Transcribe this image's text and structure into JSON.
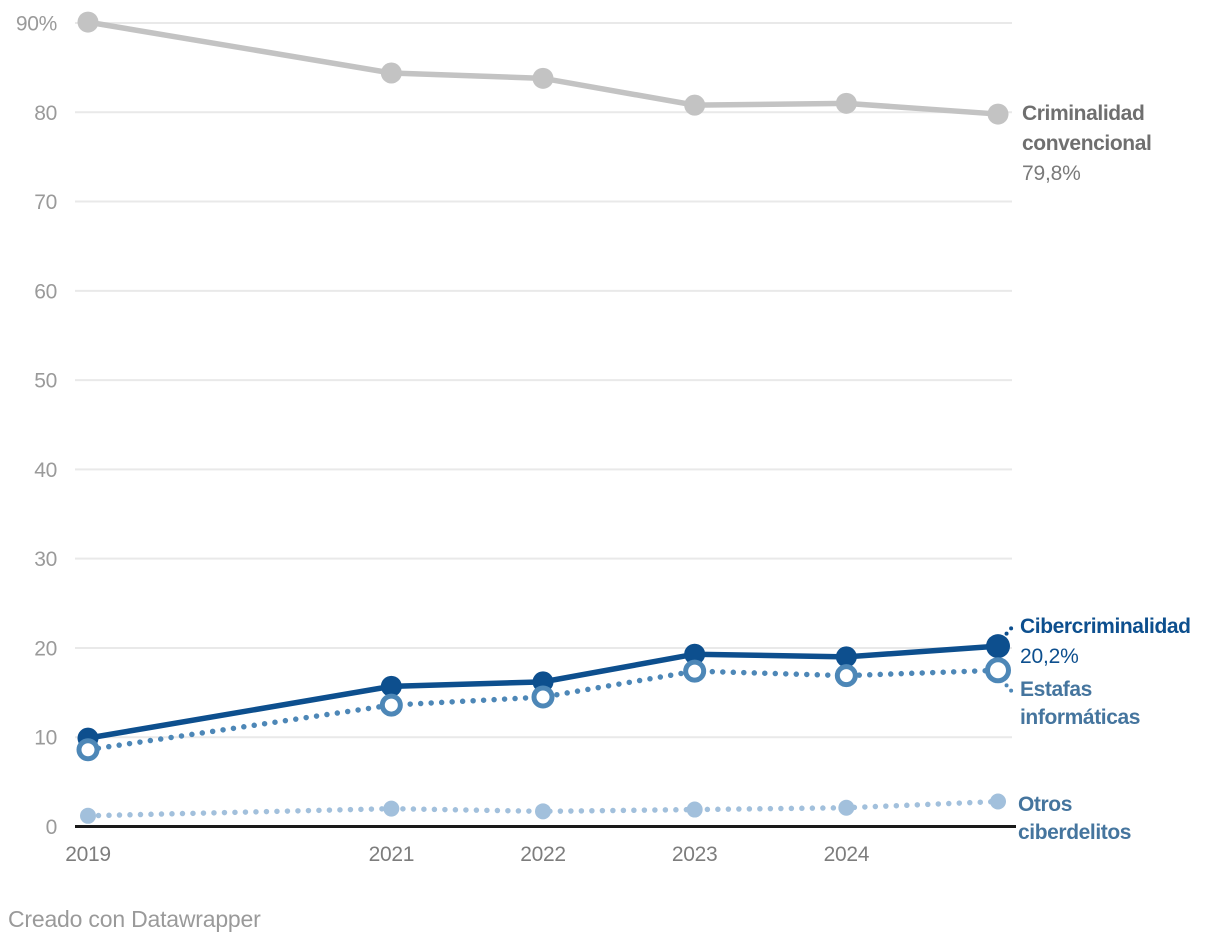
{
  "chart_data": {
    "type": "line",
    "x": [
      2019,
      2021,
      2022,
      2023,
      2024,
      2025
    ],
    "xlim": [
      2019,
      2025
    ],
    "x_ticks": [
      2019,
      2021,
      2022,
      2023,
      2024
    ],
    "x_tick_labels": [
      "2019",
      "2021",
      "2022",
      "2023",
      "2024"
    ],
    "ylim": [
      0,
      90
    ],
    "y_ticks": [
      0,
      10,
      20,
      30,
      40,
      50,
      60,
      70,
      80,
      90
    ],
    "y_tick_labels": [
      "0",
      "10",
      "20",
      "30",
      "40",
      "50",
      "60",
      "70",
      "80",
      "90%"
    ],
    "grid": "horizontal",
    "legend_position": "right-edge-labels",
    "series": [
      {
        "id": "criminalidad-convencional",
        "name": "Criminalidad convencional",
        "values": [
          90.1,
          84.4,
          83.8,
          80.8,
          81.0,
          79.8
        ],
        "color": "#c3c3c3",
        "line_style": "solid",
        "marker": "filled",
        "end_value_label": "79,8%"
      },
      {
        "id": "cibercriminalidad",
        "name": "Cibercriminalidad",
        "values": [
          9.9,
          15.7,
          16.2,
          19.3,
          19.0,
          20.2
        ],
        "color": "#0d4f8e",
        "line_style": "solid",
        "marker": "filled",
        "end_value_label": "20,2%"
      },
      {
        "id": "estafas-informaticas",
        "name": "Estafas informáticas",
        "values": [
          8.6,
          13.6,
          14.5,
          17.4,
          16.9,
          17.5
        ],
        "color": "#4d87b7",
        "line_style": "dotted",
        "marker": "open",
        "end_value_label": ""
      },
      {
        "id": "otros-ciberdelitos",
        "name": "Otros ciberdelitos",
        "values": [
          1.2,
          2.0,
          1.7,
          1.9,
          2.1,
          2.8
        ],
        "color": "#a2c0dc",
        "line_style": "dotted",
        "marker": "filled",
        "end_value_label": ""
      }
    ]
  },
  "labels": {
    "conv_line1": "Criminalidad",
    "conv_line2": "convencional",
    "conv_value": "79,8%",
    "ciber_name": "Cibercriminalidad",
    "ciber_value": "20,2%",
    "estafas_line1": "Estafas",
    "estafas_line2": "informáticas",
    "otros_line1": "Otros",
    "otros_line2": "ciberdelitos"
  },
  "colors": {
    "dark_blue": "#0d4f8e",
    "steel_blue": "#4d87b7",
    "light_blue": "#a2c0dc",
    "gray_line": "#c3c3c3",
    "gray_label": "#6f6f6f",
    "gray_value": "#7a7a7a",
    "blue_label": "#45759e",
    "y_tick_color": "#9a9a9a",
    "x_tick_color": "#7d7d7d",
    "gridline_color": "#e9e9e9",
    "axis_color": "#1a1a1a"
  },
  "footer": {
    "credit": "Creado con Datawrapper"
  }
}
